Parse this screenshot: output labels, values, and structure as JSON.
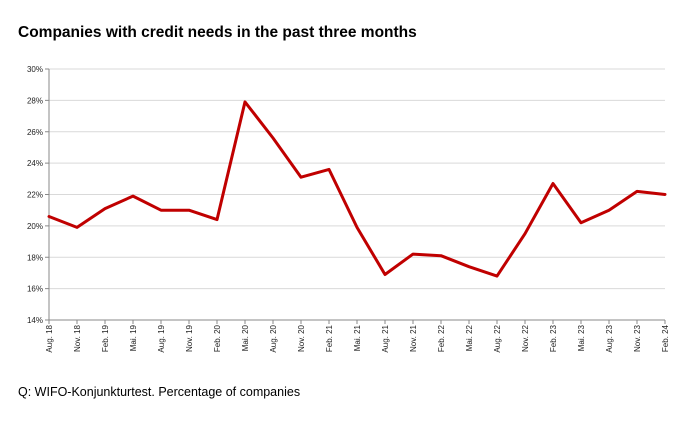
{
  "chart_data": {
    "type": "line",
    "title": "Companies with credit needs in the past three months",
    "xlabel": "",
    "ylabel": "",
    "ylim": [
      14,
      30
    ],
    "yticks": [
      "14%",
      "16%",
      "18%",
      "20%",
      "22%",
      "24%",
      "26%",
      "28%",
      "30%"
    ],
    "categories": [
      "Aug. 18",
      "Nov. 18",
      "Feb. 19",
      "Mai. 19",
      "Aug. 19",
      "Nov. 19",
      "Feb. 20",
      "Mai. 20",
      "Aug. 20",
      "Nov. 20",
      "Feb. 21",
      "Mai. 21",
      "Aug. 21",
      "Nov. 21",
      "Feb. 22",
      "Mai. 22",
      "Aug. 22",
      "Nov. 22",
      "Feb. 23",
      "Mai. 23",
      "Aug. 23",
      "Nov. 23",
      "Feb. 24"
    ],
    "series": [
      {
        "values": [
          20.6,
          19.9,
          21.1,
          21.9,
          21.0,
          21.0,
          20.4,
          27.9,
          25.6,
          23.1,
          23.6,
          19.9,
          16.9,
          18.2,
          18.1,
          17.4,
          16.8,
          19.5,
          22.7,
          20.2,
          21.0,
          22.2,
          22.0
        ],
        "color": "#c00000"
      }
    ],
    "grid": true,
    "legend": "none"
  },
  "source": "Q: WIFO-Konjunkturtest. Percentage of companies",
  "colors": {
    "line": "#c00000",
    "grid": "#d9d9d9",
    "axis": "#888888"
  }
}
